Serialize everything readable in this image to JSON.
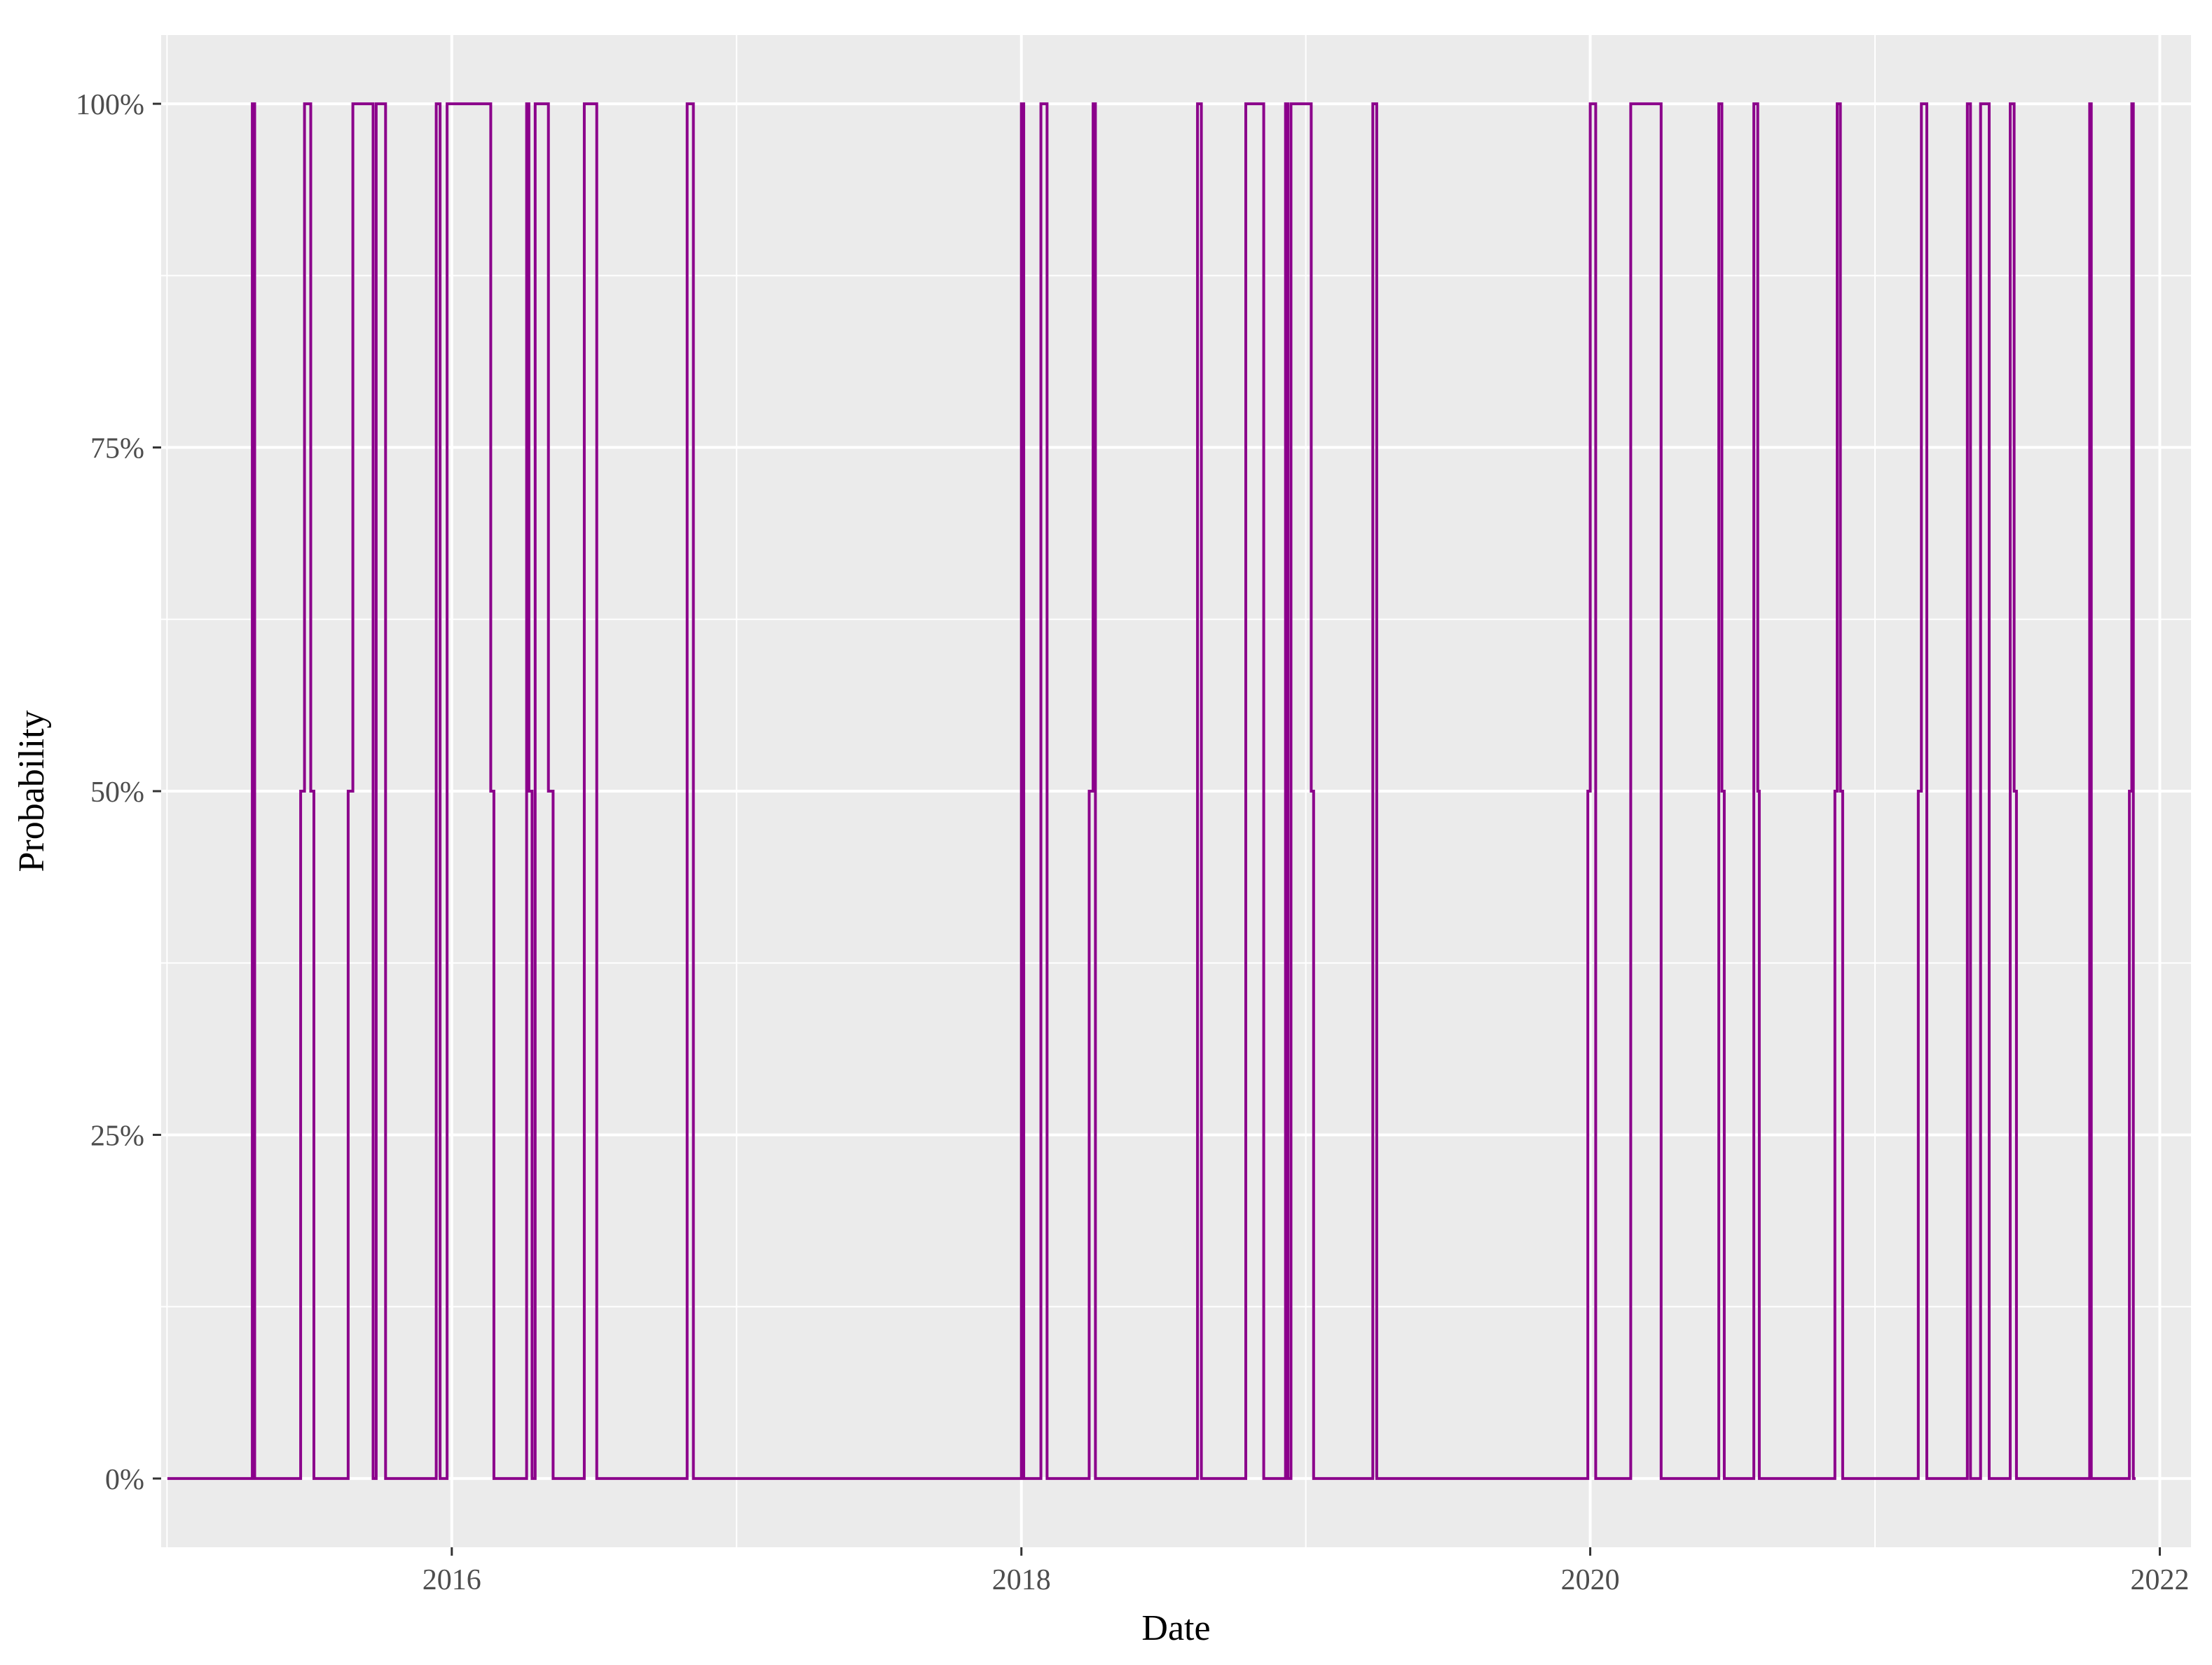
{
  "chart_data": {
    "type": "line",
    "step": true,
    "xlabel": "Date",
    "ylabel": "Probability",
    "x_scale": "date",
    "xlim": [
      "2014-12-24",
      "2022-02-10"
    ],
    "ylim": [
      -0.05,
      1.05
    ],
    "x_ticks": [
      "2016-01-01",
      "2018-01-01",
      "2020-01-01",
      "2022-01-01"
    ],
    "x_tick_labels": [
      "2016",
      "2018",
      "2020",
      "2022"
    ],
    "y_ticks": [
      0,
      0.25,
      0.5,
      0.75,
      1.0
    ],
    "y_tick_labels": [
      "0%",
      "25%",
      "50%",
      "75%",
      "100%"
    ],
    "grid": true,
    "legend": "none",
    "colors": {
      "panel": "#ebebeb",
      "grid": "#ffffff",
      "series": "#8b008b",
      "tick_text": "#4d4d4d"
    },
    "series": [
      {
        "points": [
          [
            "2015-01-01",
            0
          ],
          [
            "2015-04-20",
            0
          ],
          [
            "2015-04-20",
            1
          ],
          [
            "2015-04-23",
            1
          ],
          [
            "2015-04-23",
            0
          ],
          [
            "2015-06-21",
            0
          ],
          [
            "2015-06-21",
            0.5
          ],
          [
            "2015-06-26",
            0.5
          ],
          [
            "2015-06-26",
            1
          ],
          [
            "2015-07-04",
            1
          ],
          [
            "2015-07-04",
            0.5
          ],
          [
            "2015-07-08",
            0.5
          ],
          [
            "2015-07-08",
            0
          ],
          [
            "2015-08-21",
            0
          ],
          [
            "2015-08-21",
            0.5
          ],
          [
            "2015-08-27",
            0.5
          ],
          [
            "2015-08-27",
            1
          ],
          [
            "2015-09-22",
            1
          ],
          [
            "2015-09-22",
            0
          ],
          [
            "2015-09-26",
            0
          ],
          [
            "2015-09-26",
            1
          ],
          [
            "2015-10-08",
            1
          ],
          [
            "2015-10-08",
            0
          ],
          [
            "2015-12-12",
            0
          ],
          [
            "2015-12-12",
            1
          ],
          [
            "2015-12-17",
            1
          ],
          [
            "2015-12-17",
            0
          ],
          [
            "2015-12-26",
            0
          ],
          [
            "2015-12-26",
            1
          ],
          [
            "2016-02-20",
            1
          ],
          [
            "2016-02-20",
            0.5
          ],
          [
            "2016-02-24",
            0.5
          ],
          [
            "2016-02-24",
            0
          ],
          [
            "2016-04-06",
            0
          ],
          [
            "2016-04-06",
            1
          ],
          [
            "2016-04-09",
            1
          ],
          [
            "2016-04-09",
            0.5
          ],
          [
            "2016-04-13",
            0.5
          ],
          [
            "2016-04-13",
            0
          ],
          [
            "2016-04-17",
            0
          ],
          [
            "2016-04-17",
            1
          ],
          [
            "2016-05-04",
            1
          ],
          [
            "2016-05-04",
            0.5
          ],
          [
            "2016-05-10",
            0.5
          ],
          [
            "2016-05-10",
            0
          ],
          [
            "2016-06-19",
            0
          ],
          [
            "2016-06-19",
            1
          ],
          [
            "2016-07-05",
            1
          ],
          [
            "2016-07-05",
            0
          ],
          [
            "2016-10-29",
            0
          ],
          [
            "2016-10-29",
            1
          ],
          [
            "2016-11-06",
            1
          ],
          [
            "2016-11-06",
            0
          ],
          [
            "2018-01-01",
            0
          ],
          [
            "2018-01-01",
            1
          ],
          [
            "2018-01-04",
            1
          ],
          [
            "2018-01-04",
            0
          ],
          [
            "2018-01-26",
            0
          ],
          [
            "2018-01-26",
            1
          ],
          [
            "2018-02-03",
            1
          ],
          [
            "2018-02-03",
            0
          ],
          [
            "2018-03-29",
            0
          ],
          [
            "2018-03-29",
            0.5
          ],
          [
            "2018-04-03",
            0.5
          ],
          [
            "2018-04-03",
            1
          ],
          [
            "2018-04-06",
            1
          ],
          [
            "2018-04-06",
            0
          ],
          [
            "2018-08-15",
            0
          ],
          [
            "2018-08-15",
            1
          ],
          [
            "2018-08-20",
            1
          ],
          [
            "2018-08-20",
            0
          ],
          [
            "2018-10-16",
            0
          ],
          [
            "2018-10-16",
            1
          ],
          [
            "2018-11-08",
            1
          ],
          [
            "2018-11-08",
            0
          ],
          [
            "2018-12-06",
            0
          ],
          [
            "2018-12-06",
            1
          ],
          [
            "2018-12-09",
            1
          ],
          [
            "2018-12-09",
            0
          ],
          [
            "2018-12-13",
            0
          ],
          [
            "2018-12-13",
            1
          ],
          [
            "2019-01-08",
            1
          ],
          [
            "2019-01-08",
            0.5
          ],
          [
            "2019-01-11",
            0.5
          ],
          [
            "2019-01-11",
            0
          ],
          [
            "2019-03-28",
            0
          ],
          [
            "2019-03-28",
            1
          ],
          [
            "2019-04-02",
            1
          ],
          [
            "2019-04-02",
            0
          ],
          [
            "2019-12-29",
            0
          ],
          [
            "2019-12-29",
            0.5
          ],
          [
            "2020-01-01",
            0.5
          ],
          [
            "2020-01-01",
            1
          ],
          [
            "2020-01-08",
            1
          ],
          [
            "2020-01-08",
            0
          ],
          [
            "2020-02-22",
            0
          ],
          [
            "2020-02-22",
            1
          ],
          [
            "2020-04-01",
            1
          ],
          [
            "2020-04-01",
            0
          ],
          [
            "2020-06-14",
            0
          ],
          [
            "2020-06-14",
            1
          ],
          [
            "2020-06-18",
            1
          ],
          [
            "2020-06-18",
            0.5
          ],
          [
            "2020-06-21",
            0.5
          ],
          [
            "2020-06-21",
            0
          ],
          [
            "2020-07-29",
            0
          ],
          [
            "2020-07-29",
            1
          ],
          [
            "2020-08-03",
            1
          ],
          [
            "2020-08-03",
            0.5
          ],
          [
            "2020-08-05",
            0.5
          ],
          [
            "2020-08-05",
            0
          ],
          [
            "2020-11-10",
            0
          ],
          [
            "2020-11-10",
            0.5
          ],
          [
            "2020-11-13",
            0.5
          ],
          [
            "2020-11-13",
            1
          ],
          [
            "2020-11-17",
            1
          ],
          [
            "2020-11-17",
            0.5
          ],
          [
            "2020-11-20",
            0.5
          ],
          [
            "2020-11-20",
            0
          ],
          [
            "2021-02-25",
            0
          ],
          [
            "2021-02-25",
            0.5
          ],
          [
            "2021-03-01",
            0.5
          ],
          [
            "2021-03-01",
            1
          ],
          [
            "2021-03-08",
            1
          ],
          [
            "2021-03-08",
            0
          ],
          [
            "2021-04-29",
            0
          ],
          [
            "2021-04-29",
            1
          ],
          [
            "2021-05-03",
            1
          ],
          [
            "2021-05-03",
            0
          ],
          [
            "2021-05-16",
            0
          ],
          [
            "2021-05-16",
            1
          ],
          [
            "2021-05-27",
            1
          ],
          [
            "2021-05-27",
            0
          ],
          [
            "2021-06-23",
            0
          ],
          [
            "2021-06-23",
            1
          ],
          [
            "2021-06-28",
            1
          ],
          [
            "2021-06-28",
            0.5
          ],
          [
            "2021-07-01",
            0.5
          ],
          [
            "2021-07-01",
            0
          ],
          [
            "2021-10-03",
            0
          ],
          [
            "2021-10-03",
            1
          ],
          [
            "2021-10-05",
            1
          ],
          [
            "2021-10-05",
            0
          ],
          [
            "2021-11-23",
            0
          ],
          [
            "2021-11-23",
            0.5
          ],
          [
            "2021-11-26",
            0.5
          ],
          [
            "2021-11-26",
            1
          ],
          [
            "2021-11-28",
            1
          ],
          [
            "2021-11-28",
            0
          ],
          [
            "2021-12-01",
            0
          ]
        ]
      }
    ]
  }
}
